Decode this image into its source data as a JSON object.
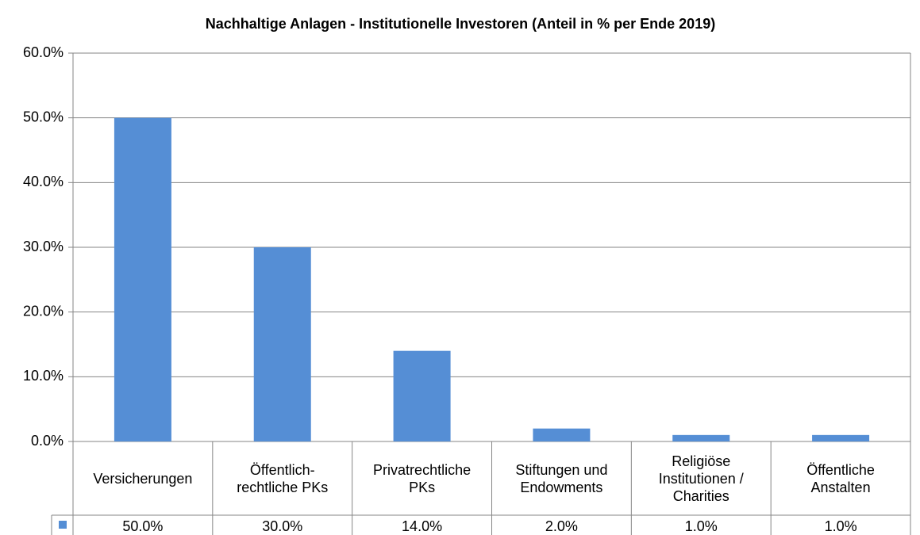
{
  "chart_data": {
    "type": "bar",
    "title": "Nachhaltige Anlagen - Institutionelle Investoren (Anteil in % per Ende 2019)",
    "categories": [
      "Versicherungen",
      "Öffentlich-rechtliche PKs",
      "Privatrechtliche PKs",
      "Stiftungen und Endowments",
      "Religiöse Institutionen / Charities",
      "Öffentliche Anstalten"
    ],
    "values": [
      50,
      30,
      14,
      2,
      1,
      1
    ],
    "value_labels": [
      "50.0%",
      "30.0%",
      "14.0%",
      "2.0%",
      "1.0%",
      "1.0%"
    ],
    "color": "#558ed5",
    "ylim": [
      0,
      60
    ],
    "yticks": [
      {
        "value": 0,
        "label": "0.0%"
      },
      {
        "value": 10,
        "label": "10.0%"
      },
      {
        "value": 20,
        "label": "20.0%"
      },
      {
        "value": 30,
        "label": "30.0%"
      },
      {
        "value": 40,
        "label": "40.0%"
      },
      {
        "value": 50,
        "label": "50.0%"
      },
      {
        "value": 60,
        "label": "60.0%"
      }
    ],
    "grid": true
  }
}
